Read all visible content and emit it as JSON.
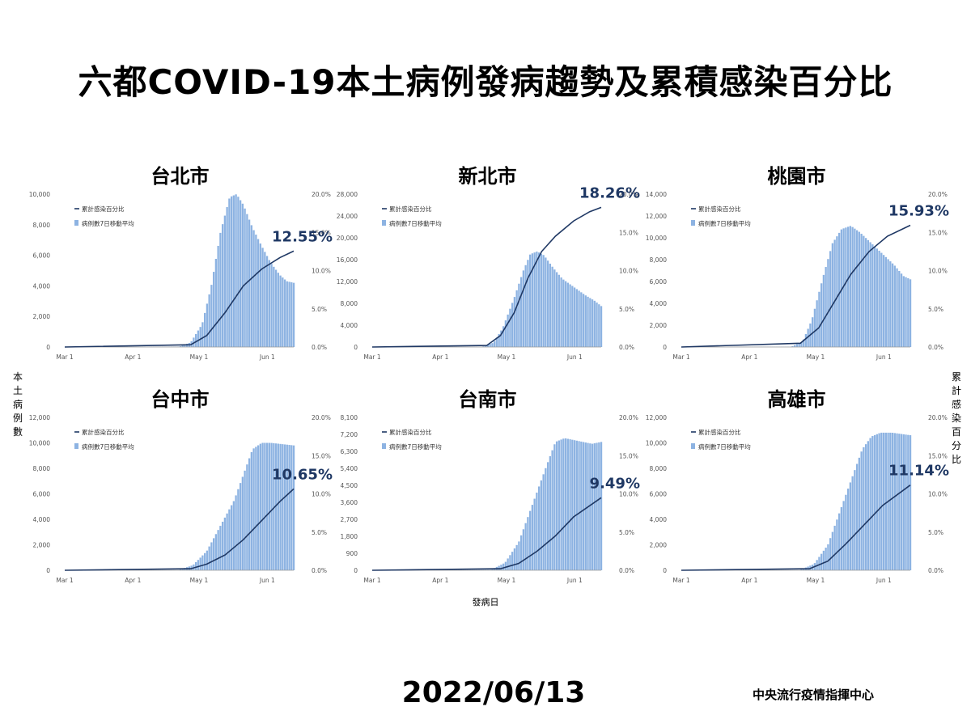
{
  "title": "六都COVID-19本土病例發病趨勢及累積感染百分比",
  "y_axis_left_title": "本土病例數",
  "y_axis_right_title": "累計感染百分比",
  "x_axis_title": "發病日",
  "date": "2022/06/13",
  "organization": "中央流行疫情指揮中心",
  "legend": {
    "line": "累計感染百分比",
    "bar": "病例數7日移動平均"
  },
  "colors": {
    "bar": "#8db3e2",
    "line": "#1f3864"
  },
  "chart_data": [
    {
      "type": "bar",
      "city": "台北市",
      "x_ticks": [
        "Mar 1",
        "Apr 1",
        "May 1",
        "Jun 1"
      ],
      "left_ticks": [
        "0",
        "2,000",
        "4,000",
        "6,000",
        "8,000",
        "10,000"
      ],
      "left_max": 10000,
      "right_ticks": [
        "0.0%",
        "5.0%",
        "10.0%",
        "15.0%",
        "20.0%"
      ],
      "right_max": 20,
      "series": [
        {
          "name": "病例數7日移動平均",
          "values": [
            [
              0,
              0
            ],
            [
              50,
              30
            ],
            [
              55,
              300
            ],
            [
              60,
              1500
            ],
            [
              64,
              4000
            ],
            [
              68,
              7500
            ],
            [
              72,
              9800
            ],
            [
              75,
              10000
            ],
            [
              78,
              9300
            ],
            [
              82,
              7800
            ],
            [
              86,
              6600
            ],
            [
              90,
              5500
            ],
            [
              94,
              4700
            ],
            [
              97,
              4300
            ],
            [
              100,
              4200
            ]
          ]
        },
        {
          "name": "累計感染百分比",
          "values": [
            [
              0,
              0
            ],
            [
              55,
              0.3
            ],
            [
              62,
              1.5
            ],
            [
              70,
              4.5
            ],
            [
              78,
              8
            ],
            [
              86,
              10.2
            ],
            [
              94,
              11.7
            ],
            [
              100,
              12.55
            ]
          ]
        }
      ],
      "annotation": "12.55%"
    },
    {
      "type": "bar",
      "city": "新北市",
      "x_ticks": [
        "Mar 1",
        "Apr 1",
        "May 1",
        "Jun 1"
      ],
      "left_ticks": [
        "0",
        "4,000",
        "8,000",
        "12,000",
        "16,000",
        "20,000",
        "24,000",
        "28,000"
      ],
      "left_max": 28000,
      "right_ticks": [
        "0.0%",
        "5.0%",
        "10.0%",
        "15.0%",
        "20.0%"
      ],
      "right_max": 20,
      "series": [
        {
          "name": "病例數7日移動平均",
          "values": [
            [
              0,
              0
            ],
            [
              48,
              50
            ],
            [
              53,
              800
            ],
            [
              57,
              3500
            ],
            [
              62,
              9000
            ],
            [
              66,
              14000
            ],
            [
              69,
              17000
            ],
            [
              72,
              17500
            ],
            [
              75,
              16800
            ],
            [
              79,
              14500
            ],
            [
              83,
              12500
            ],
            [
              88,
              11000
            ],
            [
              93,
              9500
            ],
            [
              97,
              8500
            ],
            [
              100,
              7500
            ]
          ]
        },
        {
          "name": "累計感染百分比",
          "values": [
            [
              0,
              0
            ],
            [
              50,
              0.2
            ],
            [
              56,
              1.5
            ],
            [
              62,
              4.5
            ],
            [
              68,
              9
            ],
            [
              74,
              12.5
            ],
            [
              80,
              14.5
            ],
            [
              88,
              16.5
            ],
            [
              95,
              17.7
            ],
            [
              100,
              18.26
            ]
          ]
        }
      ],
      "annotation": "18.26%"
    },
    {
      "type": "bar",
      "city": "桃園市",
      "x_ticks": [
        "Mar 1",
        "Apr 1",
        "May 1",
        "Jun 1"
      ],
      "left_ticks": [
        "0",
        "2,000",
        "4,000",
        "6,000",
        "8,000",
        "10,000",
        "12,000",
        "14,000"
      ],
      "left_max": 14000,
      "right_ticks": [
        "0.0%",
        "5.0%",
        "10.0%",
        "15.0%",
        "20.0%"
      ],
      "right_max": 20,
      "series": [
        {
          "name": "病例數7日移動平均",
          "values": [
            [
              0,
              0
            ],
            [
              48,
              30
            ],
            [
              53,
              500
            ],
            [
              57,
              2500
            ],
            [
              62,
              6500
            ],
            [
              66,
              9500
            ],
            [
              70,
              10800
            ],
            [
              74,
              11100
            ],
            [
              78,
              10500
            ],
            [
              83,
              9500
            ],
            [
              88,
              8500
            ],
            [
              93,
              7500
            ],
            [
              97,
              6500
            ],
            [
              100,
              6200
            ]
          ]
        },
        {
          "name": "累計感染百分比",
          "values": [
            [
              0,
              0
            ],
            [
              52,
              0.5
            ],
            [
              60,
              2.5
            ],
            [
              67,
              6
            ],
            [
              74,
              9.5
            ],
            [
              82,
              12.5
            ],
            [
              90,
              14.5
            ],
            [
              100,
              15.93
            ]
          ]
        }
      ],
      "annotation": "15.93%"
    },
    {
      "type": "bar",
      "city": "台中市",
      "x_ticks": [
        "Mar 1",
        "Apr 1",
        "May 1",
        "Jun 1"
      ],
      "left_ticks": [
        "0",
        "2,000",
        "4,000",
        "6,000",
        "8,000",
        "10,000",
        "12,000"
      ],
      "left_max": 12000,
      "right_ticks": [
        "0.0%",
        "5.0%",
        "10.0%",
        "15.0%",
        "20.0%"
      ],
      "right_max": 20,
      "series": [
        {
          "name": "病例數7日移動平均",
          "values": [
            [
              0,
              0
            ],
            [
              50,
              30
            ],
            [
              56,
              400
            ],
            [
              62,
              1500
            ],
            [
              68,
              3500
            ],
            [
              74,
              5500
            ],
            [
              78,
              7500
            ],
            [
              82,
              9500
            ],
            [
              86,
              10000
            ],
            [
              90,
              10000
            ],
            [
              95,
              9900
            ],
            [
              100,
              9800
            ]
          ]
        },
        {
          "name": "累計感染百分比",
          "values": [
            [
              0,
              0
            ],
            [
              55,
              0.2
            ],
            [
              62,
              0.8
            ],
            [
              70,
              2
            ],
            [
              78,
              4
            ],
            [
              86,
              6.5
            ],
            [
              94,
              9
            ],
            [
              100,
              10.65
            ]
          ]
        }
      ],
      "annotation": "10.65%"
    },
    {
      "type": "bar",
      "city": "台南市",
      "x_ticks": [
        "Mar 1",
        "Apr 1",
        "May 1",
        "Jun 1"
      ],
      "left_ticks": [
        "0",
        "900",
        "1,800",
        "2,700",
        "3,600",
        "4,500",
        "5,400",
        "6,300",
        "7,200",
        "8,100"
      ],
      "left_max": 8100,
      "right_ticks": [
        "0.0%",
        "5.0%",
        "10.0%",
        "15.0%",
        "20.0%"
      ],
      "right_max": 20,
      "series": [
        {
          "name": "病例數7日移動平均",
          "values": [
            [
              0,
              0
            ],
            [
              52,
              30
            ],
            [
              58,
              400
            ],
            [
              64,
              1500
            ],
            [
              70,
              3500
            ],
            [
              76,
              5500
            ],
            [
              80,
              6800
            ],
            [
              84,
              7000
            ],
            [
              88,
              6900
            ],
            [
              92,
              6800
            ],
            [
              96,
              6700
            ],
            [
              100,
              6800
            ]
          ]
        },
        {
          "name": "累計感染百分比",
          "values": [
            [
              0,
              0
            ],
            [
              56,
              0.2
            ],
            [
              64,
              0.9
            ],
            [
              72,
              2.5
            ],
            [
              80,
              4.5
            ],
            [
              88,
              7
            ],
            [
              100,
              9.49
            ]
          ]
        }
      ],
      "annotation": "9.49%"
    },
    {
      "type": "bar",
      "city": "高雄市",
      "x_ticks": [
        "Mar 1",
        "Apr 1",
        "May 1",
        "Jun 1"
      ],
      "left_ticks": [
        "0",
        "2,000",
        "4,000",
        "6,000",
        "8,000",
        "10,000",
        "12,000"
      ],
      "left_max": 12000,
      "right_ticks": [
        "0.0%",
        "5.0%",
        "10.0%",
        "15.0%",
        "20.0%"
      ],
      "right_max": 20,
      "series": [
        {
          "name": "病例數7日移動平均",
          "values": [
            [
              0,
              0
            ],
            [
              52,
              30
            ],
            [
              58,
              500
            ],
            [
              64,
              2000
            ],
            [
              70,
              5000
            ],
            [
              75,
              7500
            ],
            [
              79,
              9500
            ],
            [
              83,
              10500
            ],
            [
              87,
              10800
            ],
            [
              92,
              10800
            ],
            [
              96,
              10700
            ],
            [
              100,
              10600
            ]
          ]
        },
        {
          "name": "累計感染百分比",
          "values": [
            [
              0,
              0
            ],
            [
              56,
              0.2
            ],
            [
              64,
              1.2
            ],
            [
              72,
              3.5
            ],
            [
              80,
              6
            ],
            [
              88,
              8.5
            ],
            [
              100,
              11.14
            ]
          ]
        }
      ],
      "annotation": "11.14%"
    }
  ]
}
